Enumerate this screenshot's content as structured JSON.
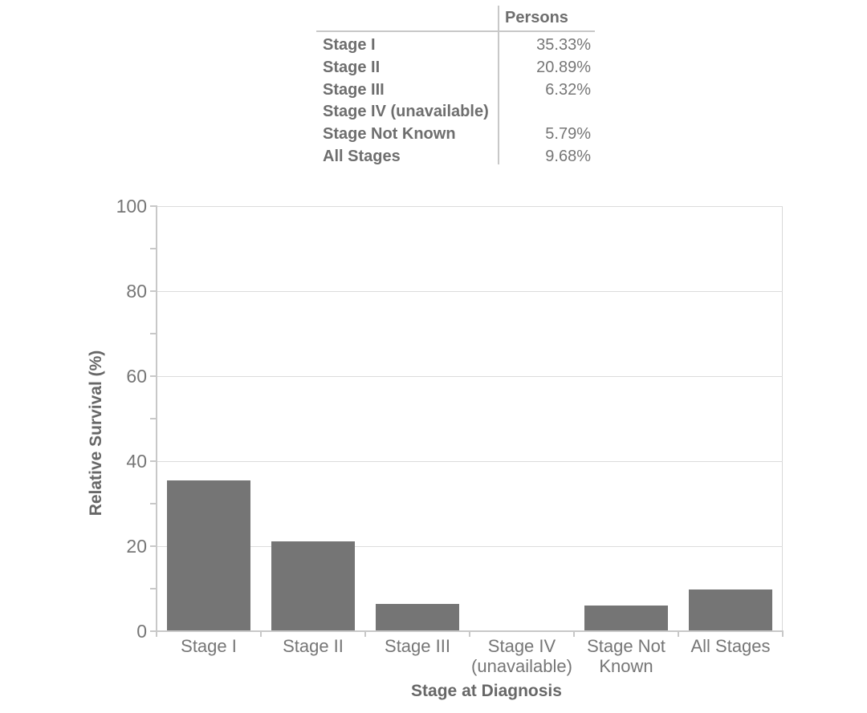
{
  "colors": {
    "bar": "#757575",
    "axis_line": "#c8c8c8",
    "gridline": "#dcdcdc",
    "label_text": "#767676",
    "title_text": "#676767"
  },
  "stats_table": {
    "header": "Persons",
    "rows": [
      {
        "label": "Stage I",
        "value": "35.33%"
      },
      {
        "label": "Stage II",
        "value": "20.89%"
      },
      {
        "label": "Stage III",
        "value": "6.32%"
      },
      {
        "label": "Stage IV (unavailable)",
        "value": ""
      },
      {
        "label": "Stage Not Known",
        "value": "5.79%"
      },
      {
        "label": "All Stages",
        "value": "9.68%"
      }
    ]
  },
  "chart_data": {
    "type": "bar",
    "title": "",
    "categories": [
      "Stage I",
      "Stage II",
      "Stage III",
      "Stage IV (unavailable)",
      "Stage Not Known",
      "All Stages"
    ],
    "values": [
      35.33,
      20.89,
      6.32,
      null,
      5.79,
      9.68
    ],
    "category_label_lines": [
      [
        "Stage I"
      ],
      [
        "Stage II"
      ],
      [
        "Stage III"
      ],
      [
        "Stage IV",
        "(unavailable)"
      ],
      [
        "Stage Not",
        "Known"
      ],
      [
        "All Stages"
      ]
    ],
    "xlabel": "Stage at Diagnosis",
    "ylabel": "Relative Survival (%)",
    "ylim": [
      0,
      100
    ],
    "ytick_major_step": 20,
    "ytick_minor_step": 10,
    "ytick_labels": [
      "0",
      "20",
      "40",
      "60",
      "80",
      "100"
    ],
    "grid": "horizontal-major",
    "legend": "none",
    "bar_color": "#757575"
  }
}
